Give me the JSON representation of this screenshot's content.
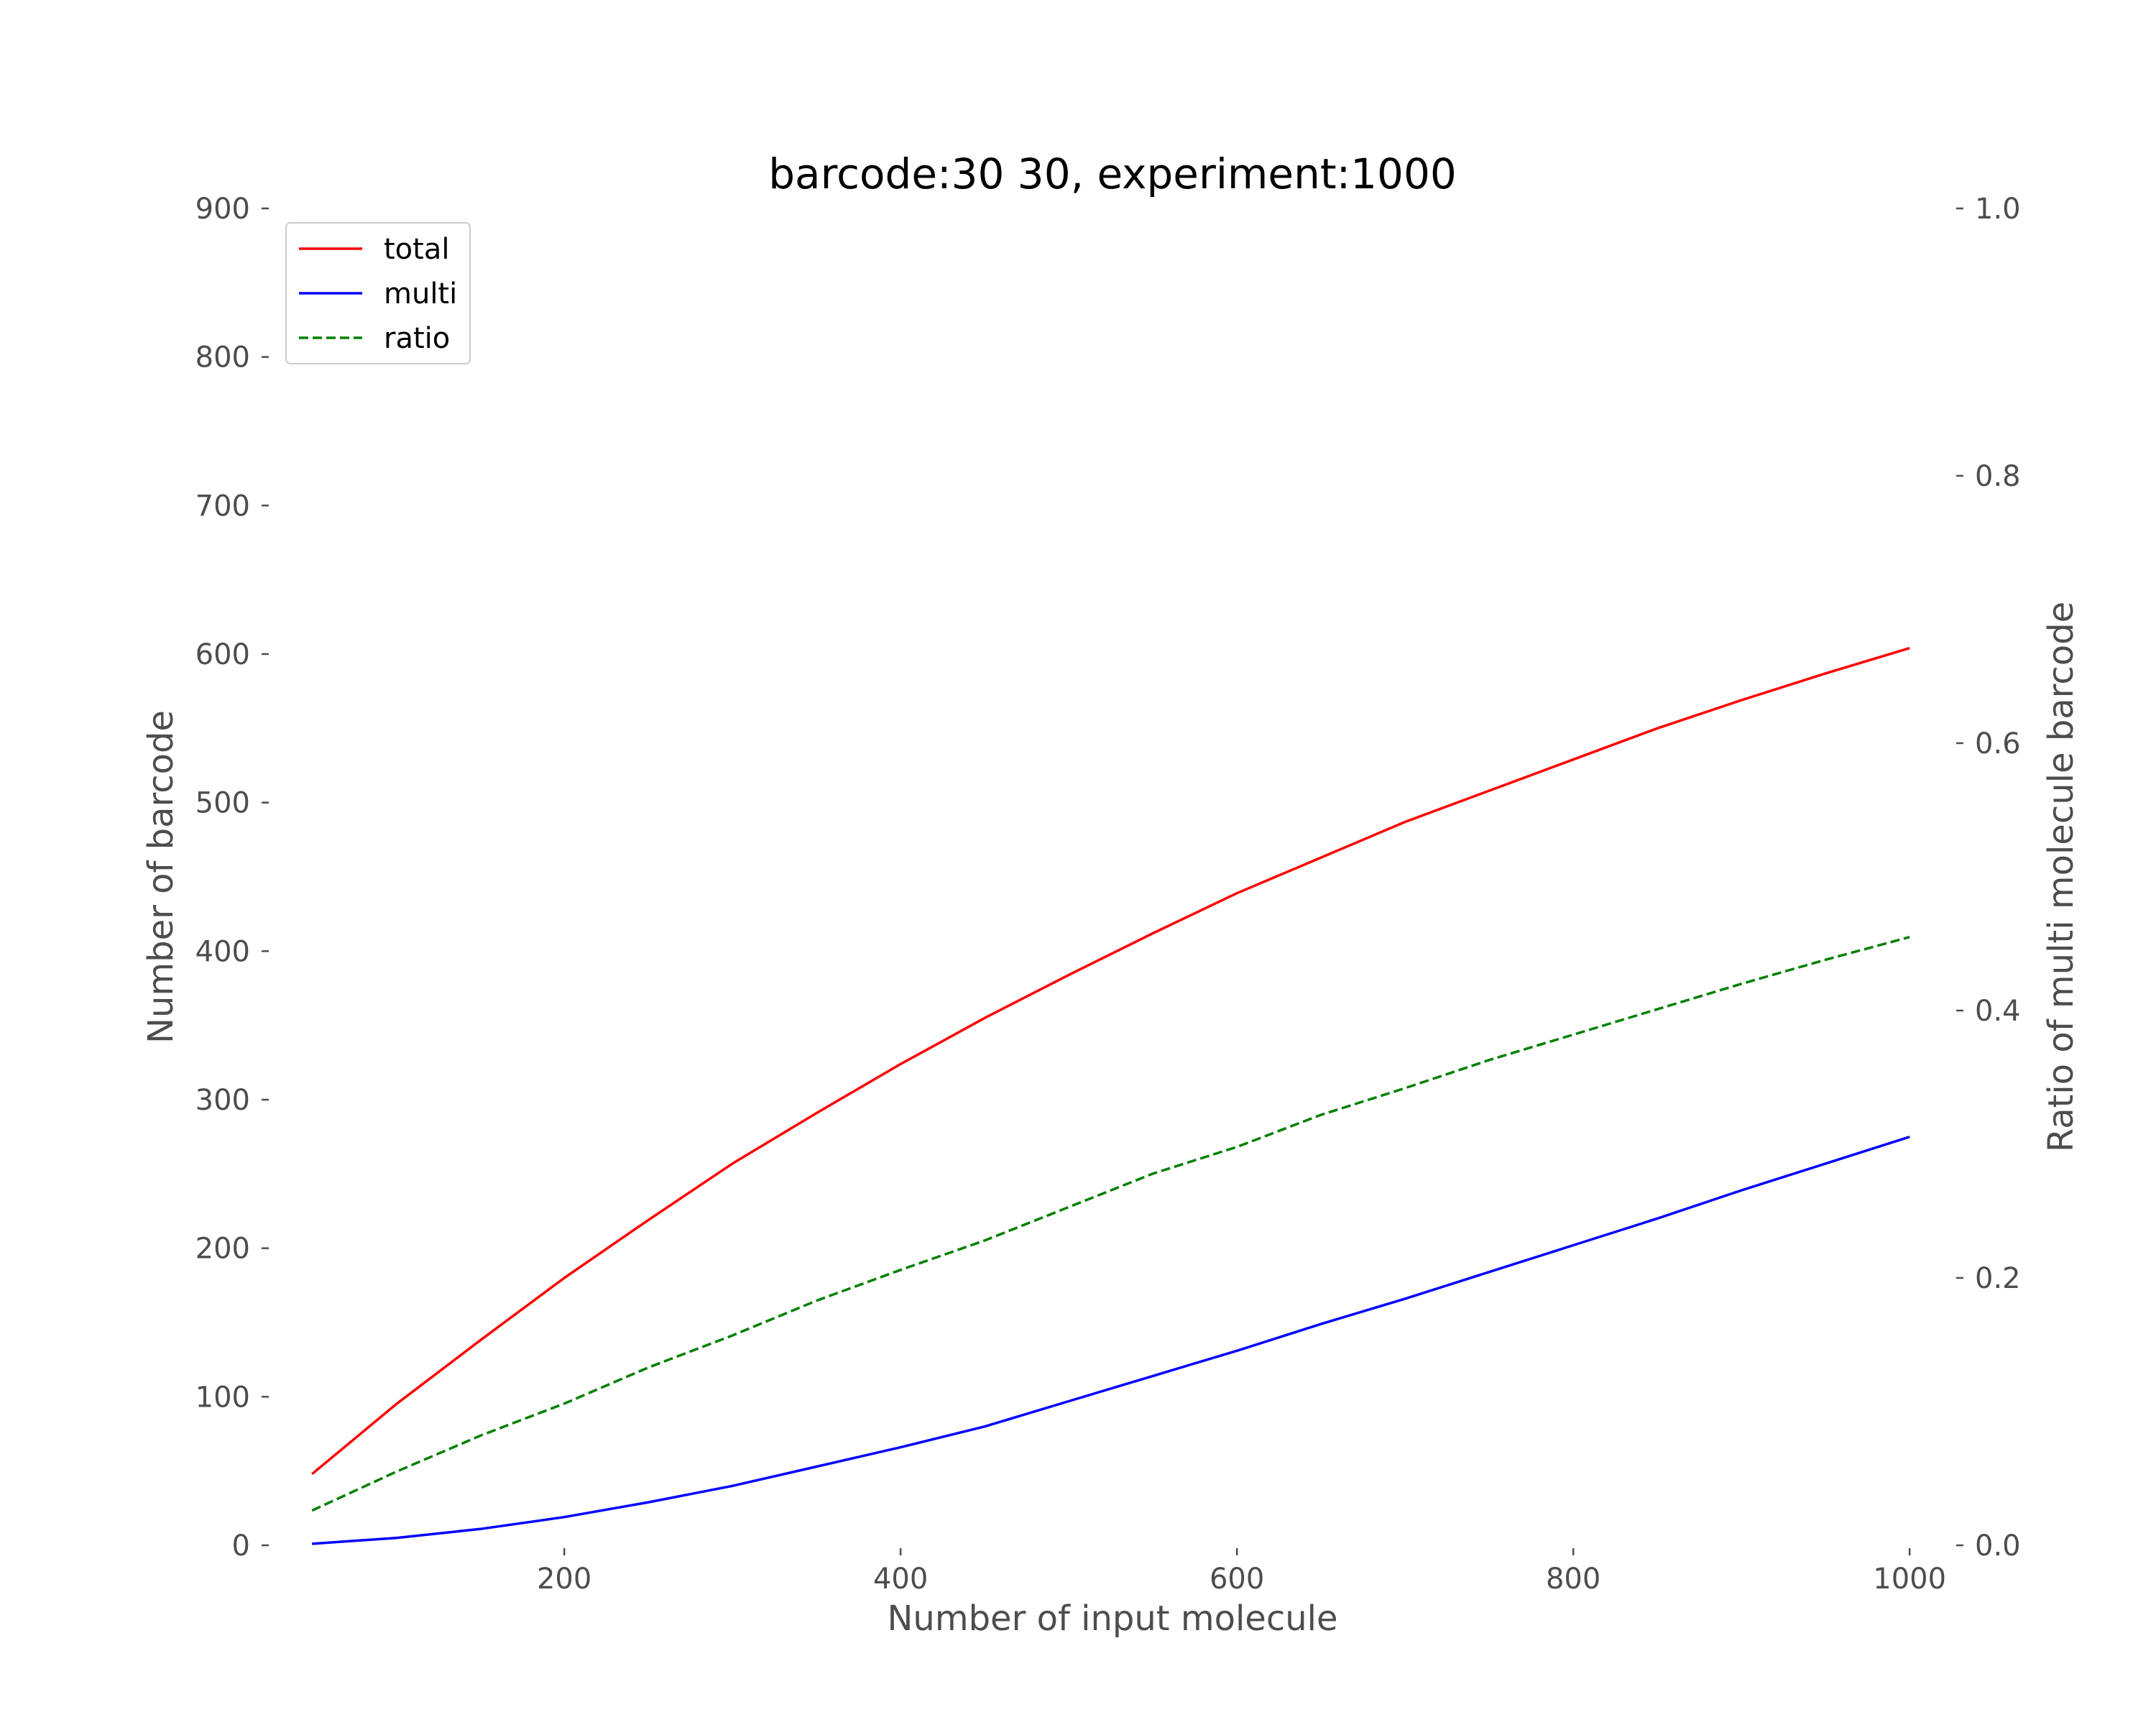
{
  "chart_data": {
    "type": "line",
    "title": "barcode:30 30, experiment:1000",
    "xlabel": "Number of input molecule",
    "ylabel": "Number of barcode",
    "ylabel_right": "Ratio of multi molecule barcode",
    "xlim": [
      26,
      1026
    ],
    "ylim": [
      0,
      900
    ],
    "ylim_right": [
      0,
      1.0
    ],
    "x_ticks": [
      200,
      400,
      600,
      800,
      1000
    ],
    "x_tick_labels": [
      "200",
      "400",
      "600",
      "800",
      "1000"
    ],
    "y_ticks": [
      0,
      100,
      200,
      300,
      400,
      500,
      600,
      700,
      800,
      900
    ],
    "y_tick_labels": [
      "0",
      "100",
      "200",
      "300",
      "400",
      "500",
      "600",
      "700",
      "800",
      "900"
    ],
    "y_right_ticks": [
      0.0,
      0.2,
      0.4,
      0.6,
      0.8,
      1.0
    ],
    "y_right_tick_labels": [
      "0.0",
      "0.2",
      "0.4",
      "0.6",
      "0.8",
      "1.0"
    ],
    "grid": false,
    "legend_position": "top-left",
    "x": [
      50,
      100,
      150,
      200,
      250,
      300,
      350,
      400,
      450,
      500,
      550,
      600,
      650,
      700,
      750,
      800,
      850,
      900,
      950,
      1000
    ],
    "series": [
      {
        "name": "total",
        "axis": "left",
        "color": "#ff0000",
        "dash": "solid",
        "values": [
          48,
          95,
          138,
          180,
          219,
          257,
          291,
          324,
          355,
          384,
          412,
          439,
          463,
          487,
          508,
          529,
          550,
          569,
          587,
          604
        ]
      },
      {
        "name": "multi",
        "axis": "left",
        "color": "#0000ff",
        "dash": "solid",
        "values": [
          1,
          5,
          11,
          19,
          29,
          40,
          53,
          66,
          80,
          97,
          114,
          131,
          149,
          166,
          184,
          202,
          220,
          239,
          257,
          275
        ]
      },
      {
        "name": "ratio",
        "axis": "right",
        "color": "#008000",
        "dash": "dashed",
        "values": [
          0.026,
          0.055,
          0.082,
          0.106,
          0.133,
          0.157,
          0.183,
          0.206,
          0.228,
          0.253,
          0.278,
          0.298,
          0.322,
          0.342,
          0.363,
          0.382,
          0.401,
          0.42,
          0.438,
          0.455
        ]
      }
    ]
  }
}
